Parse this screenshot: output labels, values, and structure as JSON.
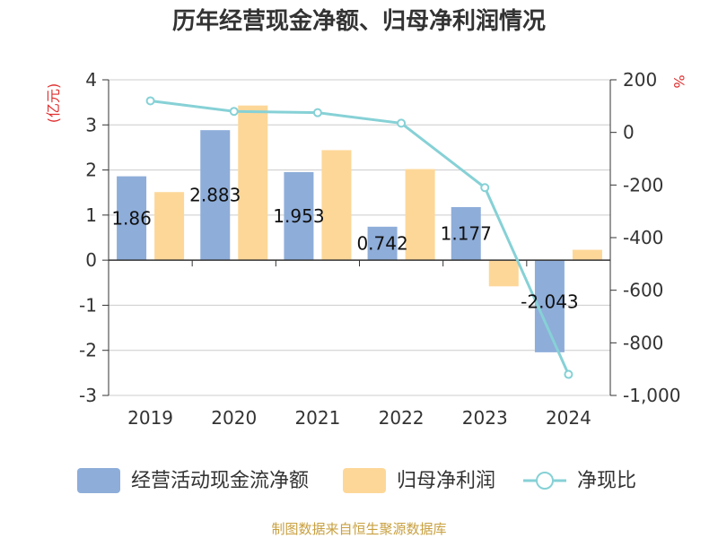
{
  "chart_data": {
    "type": "bar",
    "title": "历年经营现金净额、归母净利润情况",
    "categories": [
      "2019",
      "2020",
      "2021",
      "2022",
      "2023",
      "2024"
    ],
    "series": [
      {
        "name": "经营活动现金流净额",
        "type": "bar",
        "axis": "left",
        "color": "#8eadd9",
        "values": [
          1.86,
          2.883,
          1.953,
          0.742,
          1.177,
          -2.043
        ],
        "labels": [
          "1.86",
          "2.883",
          "1.953",
          "0.742",
          "1.177",
          "-2.043"
        ]
      },
      {
        "name": "归母净利润",
        "type": "bar",
        "axis": "left",
        "color": "#fdd798",
        "values": [
          1.51,
          3.43,
          2.44,
          2.02,
          -0.58,
          0.23
        ]
      },
      {
        "name": "净现比",
        "type": "line",
        "axis": "right",
        "color": "#86d1d6",
        "values": [
          120,
          80,
          75,
          35,
          -210,
          -920
        ]
      }
    ],
    "ylabel": "(亿元)",
    "y2label": "%",
    "ylim": [
      -3,
      4
    ],
    "yticks": [
      "4",
      "3",
      "2",
      "1",
      "0",
      "-1",
      "-2",
      "-3"
    ],
    "y2lim": [
      -1000,
      200
    ],
    "y2ticks": [
      "200",
      "0",
      "-200",
      "-400",
      "-600",
      "-800",
      "-1,000"
    ],
    "grid": true,
    "legend_position": "bottom",
    "source": "制图数据来自恒生聚源数据库"
  }
}
